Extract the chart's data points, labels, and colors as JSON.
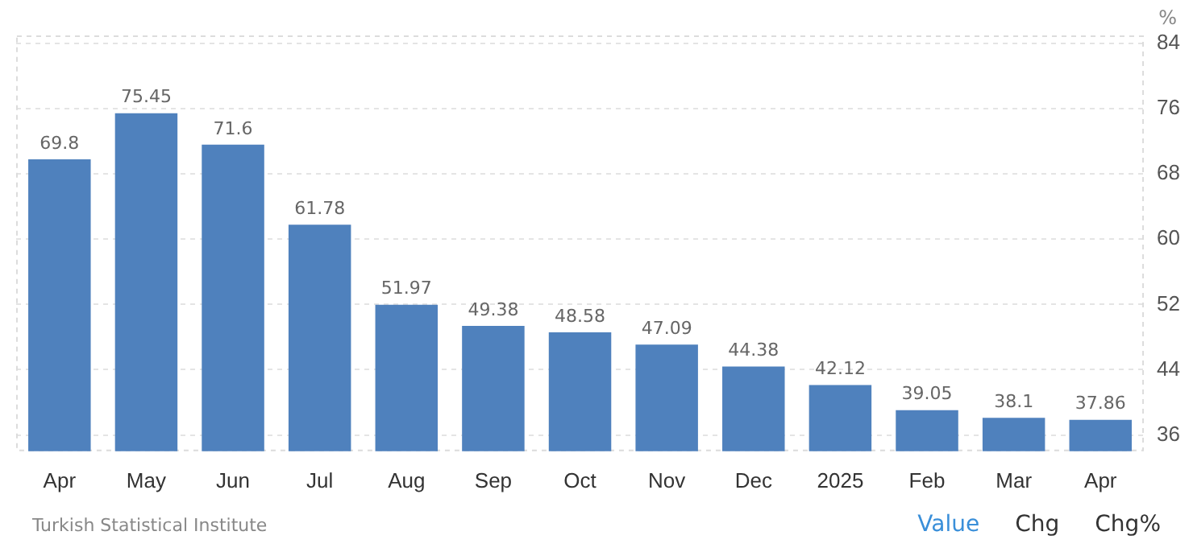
{
  "chart_data": {
    "type": "bar",
    "ylabel": "%",
    "categories": [
      "Apr",
      "May",
      "Jun",
      "Jul",
      "Aug",
      "Sep",
      "Oct",
      "Nov",
      "Dec",
      "2025",
      "Feb",
      "Mar",
      "Apr"
    ],
    "values": [
      69.8,
      75.45,
      71.6,
      61.78,
      51.97,
      49.38,
      48.58,
      47.09,
      44.38,
      42.12,
      39.05,
      38.1,
      37.86
    ],
    "color": "#4f81bd",
    "ylim": [
      34,
      85
    ],
    "yticks": [
      36,
      44,
      52,
      60,
      68,
      76,
      84
    ],
    "grid": "y",
    "data_labels": true,
    "annotations": [
      "Turkish Statistical Institute",
      "Value",
      "Chg",
      "Chg%"
    ]
  }
}
